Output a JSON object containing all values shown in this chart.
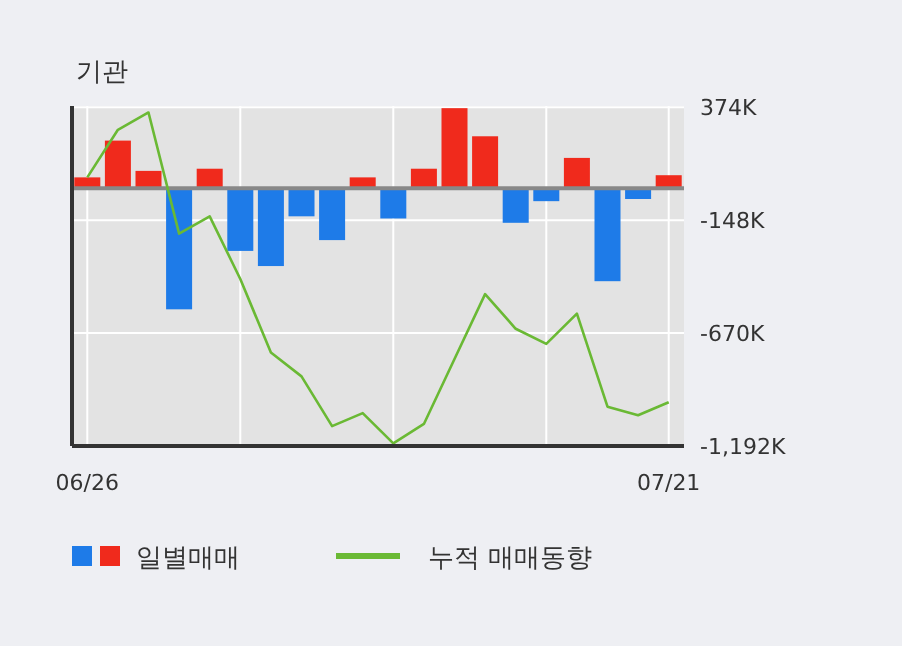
{
  "chart_data": {
    "type": "bar",
    "title": "기관",
    "categories": [
      "06/26",
      null,
      null,
      null,
      null,
      null,
      null,
      null,
      null,
      null,
      null,
      null,
      null,
      null,
      null,
      null,
      null,
      null,
      null,
      "07/21"
    ],
    "series": [
      {
        "name": "일별매매",
        "colors": [
          "#f02a1c",
          "#f02a1c",
          "#f02a1c",
          "#1e7be8",
          "#f02a1c",
          "#1e7be8",
          "#1e7be8",
          "#1e7be8",
          "#1e7be8",
          "#f02a1c",
          "#1e7be8",
          "#f02a1c",
          "#f02a1c",
          "#f02a1c",
          "#1e7be8",
          "#1e7be8",
          "#f02a1c",
          "#1e7be8",
          "#1e7be8",
          "#f02a1c"
        ],
        "values": [
          50,
          220,
          80,
          -560,
          90,
          -290,
          -360,
          -130,
          -240,
          50,
          -140,
          90,
          370,
          240,
          -160,
          -60,
          140,
          -430,
          -50,
          60
        ]
      },
      {
        "name": "누적 매매동향",
        "type": "line",
        "color": "#6ab934",
        "values": [
          50,
          270,
          350,
          -210,
          -130,
          -420,
          -760,
          -870,
          -1100,
          -1040,
          -1180,
          -1090,
          -790,
          -490,
          -650,
          -720,
          -580,
          -1010,
          -1050,
          -990
        ]
      }
    ],
    "ylim": [
      -1192,
      380
    ],
    "yticks": [
      {
        "value": 374,
        "label": "374K"
      },
      {
        "value": -148,
        "label": "-148K"
      },
      {
        "value": -670,
        "label": "-670K"
      },
      {
        "value": -1192,
        "label": "-1,192K"
      }
    ],
    "grid": true,
    "legend": "bottom"
  }
}
